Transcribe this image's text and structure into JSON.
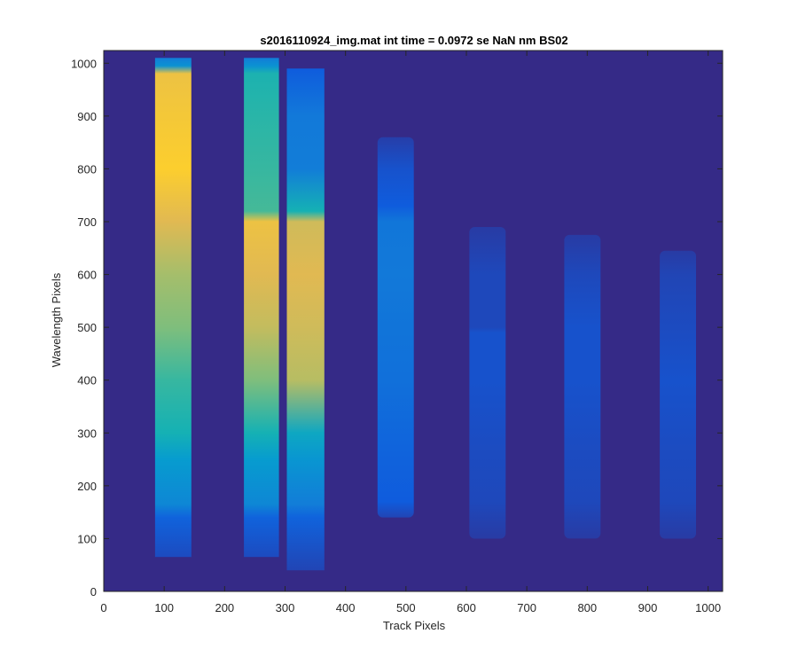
{
  "chart_data": {
    "type": "heatmap",
    "title": "s2016110924_img.mat int time = 0.0972 se  NaN nm BS02",
    "xlabel": "Track Pixels",
    "ylabel": "Wavelength Pixels",
    "xlim": [
      0,
      1024
    ],
    "ylim": [
      0,
      1024
    ],
    "xticks": [
      0,
      100,
      200,
      300,
      400,
      500,
      600,
      700,
      800,
      900,
      1000
    ],
    "yticks": [
      0,
      100,
      200,
      300,
      400,
      500,
      600,
      700,
      800,
      900,
      1000
    ],
    "colormap": "parula",
    "background_color": "#352a87",
    "grid": false,
    "tracks": [
      {
        "x_start": 85,
        "x_end": 145,
        "y_start": 65,
        "y_end": 1010,
        "profile": [
          [
            65,
            0.1
          ],
          [
            140,
            0.18
          ],
          [
            165,
            0.35
          ],
          [
            250,
            0.45
          ],
          [
            300,
            0.55
          ],
          [
            400,
            0.6
          ],
          [
            500,
            0.7
          ],
          [
            600,
            0.75
          ],
          [
            700,
            0.85
          ],
          [
            800,
            0.92
          ],
          [
            900,
            0.9
          ],
          [
            980,
            0.88
          ],
          [
            995,
            0.4
          ],
          [
            1010,
            0.3
          ]
        ]
      },
      {
        "x_start": 232,
        "x_end": 290,
        "y_start": 65,
        "y_end": 1010,
        "profile": [
          [
            65,
            0.1
          ],
          [
            140,
            0.18
          ],
          [
            165,
            0.35
          ],
          [
            250,
            0.45
          ],
          [
            300,
            0.55
          ],
          [
            400,
            0.7
          ],
          [
            500,
            0.8
          ],
          [
            600,
            0.85
          ],
          [
            700,
            0.88
          ],
          [
            720,
            0.62
          ],
          [
            800,
            0.6
          ],
          [
            900,
            0.58
          ],
          [
            980,
            0.56
          ],
          [
            995,
            0.4
          ],
          [
            1010,
            0.3
          ]
        ]
      },
      {
        "x_start": 303,
        "x_end": 365,
        "y_start": 40,
        "y_end": 990,
        "profile": [
          [
            40,
            0.08
          ],
          [
            140,
            0.18
          ],
          [
            165,
            0.3
          ],
          [
            250,
            0.42
          ],
          [
            300,
            0.5
          ],
          [
            400,
            0.78
          ],
          [
            500,
            0.82
          ],
          [
            600,
            0.85
          ],
          [
            700,
            0.82
          ],
          [
            720,
            0.55
          ],
          [
            800,
            0.3
          ],
          [
            900,
            0.28
          ],
          [
            990,
            0.15
          ]
        ]
      },
      {
        "x_start": 453,
        "x_end": 513,
        "y_start": 140,
        "y_end": 860,
        "profile": [
          [
            140,
            0.08
          ],
          [
            170,
            0.15
          ],
          [
            260,
            0.18
          ],
          [
            400,
            0.24
          ],
          [
            500,
            0.26
          ],
          [
            600,
            0.28
          ],
          [
            700,
            0.27
          ],
          [
            730,
            0.15
          ],
          [
            800,
            0.12
          ],
          [
            860,
            0.06
          ]
        ]
      },
      {
        "x_start": 605,
        "x_end": 665,
        "y_start": 100,
        "y_end": 690,
        "profile": [
          [
            100,
            0.05
          ],
          [
            170,
            0.09
          ],
          [
            260,
            0.1
          ],
          [
            400,
            0.12
          ],
          [
            490,
            0.12
          ],
          [
            500,
            0.09
          ],
          [
            600,
            0.09
          ],
          [
            690,
            0.05
          ]
        ]
      },
      {
        "x_start": 762,
        "x_end": 822,
        "y_start": 100,
        "y_end": 675,
        "profile": [
          [
            100,
            0.05
          ],
          [
            170,
            0.09
          ],
          [
            260,
            0.1
          ],
          [
            400,
            0.12
          ],
          [
            500,
            0.12
          ],
          [
            600,
            0.09
          ],
          [
            675,
            0.05
          ]
        ]
      },
      {
        "x_start": 920,
        "x_end": 980,
        "y_start": 100,
        "y_end": 645,
        "profile": [
          [
            100,
            0.05
          ],
          [
            170,
            0.09
          ],
          [
            260,
            0.1
          ],
          [
            400,
            0.12
          ],
          [
            500,
            0.1
          ],
          [
            600,
            0.08
          ],
          [
            645,
            0.05
          ]
        ]
      }
    ]
  }
}
